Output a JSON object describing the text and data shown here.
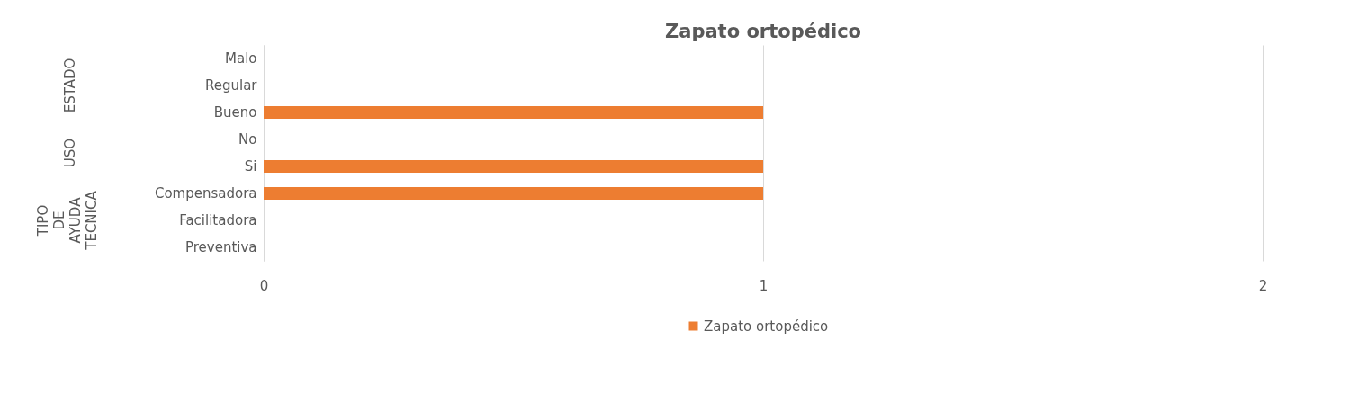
{
  "chart_data": {
    "type": "bar",
    "orientation": "horizontal",
    "title": "Zapato ortopédico",
    "categories": [
      "Malo",
      "Regular",
      "Bueno",
      "No",
      "Si",
      "Compensadora",
      "Facilitadora",
      "Preventiva"
    ],
    "series": [
      {
        "name": "Zapato ortopédico",
        "color": "#ed7d31",
        "values": [
          0,
          0,
          1,
          0,
          1,
          1,
          0,
          0
        ]
      }
    ],
    "xlim": [
      0,
      2
    ],
    "xticks": [
      0,
      1,
      2
    ],
    "grid": "x",
    "legend": "bottom",
    "annotations": [
      "ESTADO",
      "USO",
      "TIPO DE AYUDA TECNICA"
    ]
  }
}
